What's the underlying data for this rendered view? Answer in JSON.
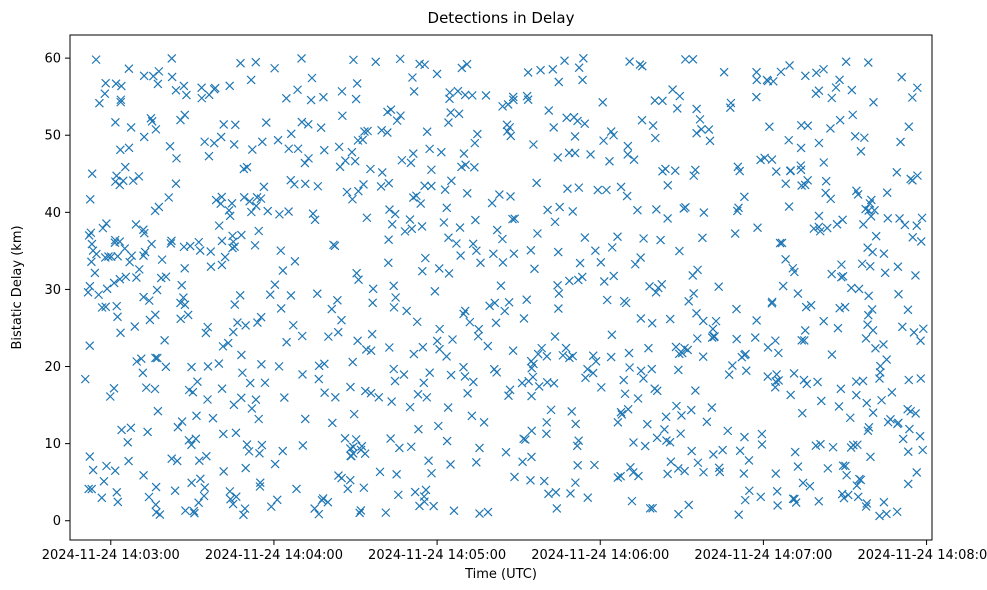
{
  "chart_data": {
    "type": "scatter",
    "title": "Detections in Delay",
    "xlabel": "Time (UTC)",
    "ylabel": "Bistatic Delay (km)",
    "x_is_time": true,
    "xlim": [
      "2024-11-24 14:02:45",
      "2024-11-24 14:08:02"
    ],
    "ylim": [
      -2.5,
      63
    ],
    "x_ticks": [
      "2024-11-24 14:03:00",
      "2024-11-24 14:04:00",
      "2024-11-24 14:05:00",
      "2024-11-24 14:06:00",
      "2024-11-24 14:07:00",
      "2024-11-24 14:08:00"
    ],
    "y_ticks": [
      0,
      10,
      20,
      30,
      40,
      50,
      60
    ],
    "grid": false,
    "legend": "none",
    "marker": "x",
    "series": [
      {
        "color": "#1f77b4",
        "seed": 20241124,
        "count": 1000,
        "x_range": [
          "2024-11-24 14:02:50",
          "2024-11-24 14:07:59"
        ],
        "y_range": [
          0.5,
          60
        ]
      }
    ]
  },
  "colors": {
    "marker": "#1f77b4",
    "axes": "#000000",
    "background": "#ffffff"
  }
}
